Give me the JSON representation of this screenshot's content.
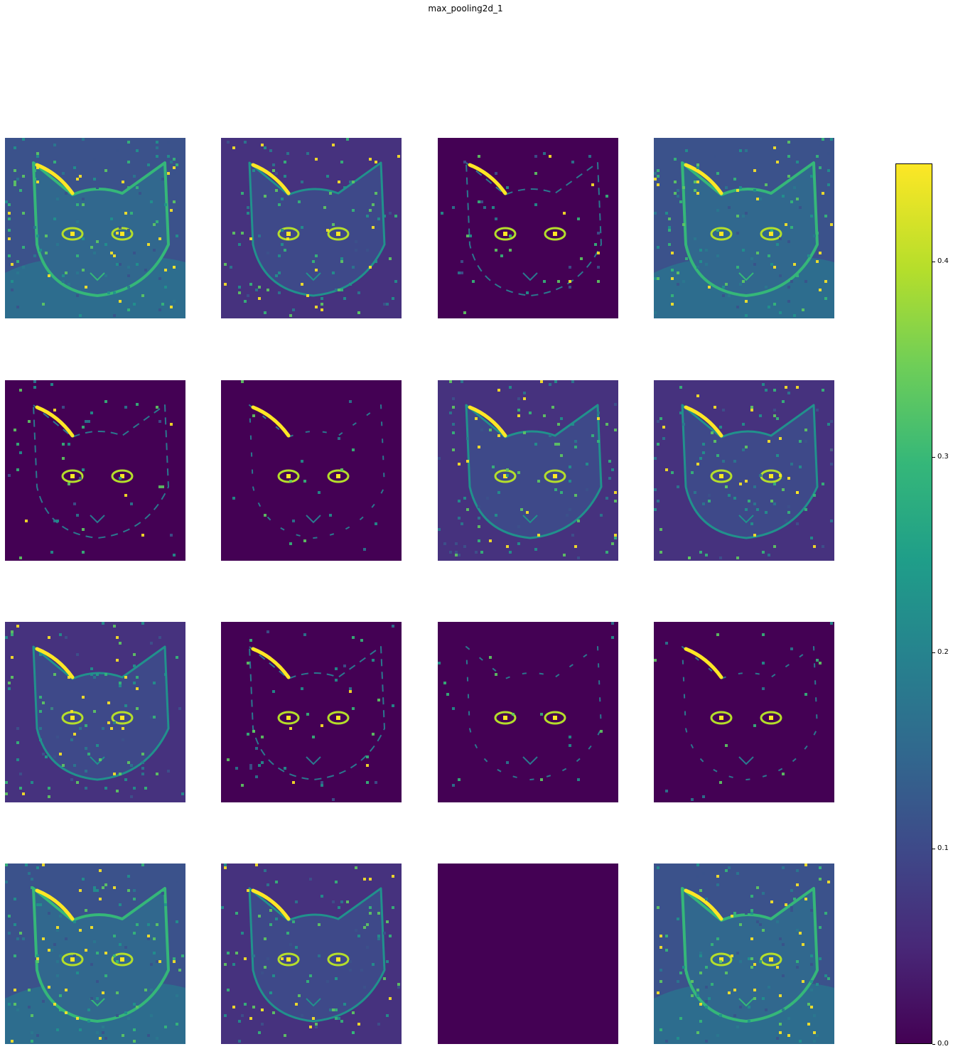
{
  "chart_data": {
    "type": "heatmap",
    "title": "max_pooling2d_1",
    "grid": {
      "rows": 4,
      "cols": 4
    },
    "axes": "off",
    "colormap": "viridis",
    "colorbar": {
      "range": [
        0.0,
        0.45
      ],
      "ticks": [
        {
          "value": 0.0,
          "label": "0.0"
        },
        {
          "value": 0.1,
          "label": "0.1"
        },
        {
          "value": 0.2,
          "label": "0.2"
        },
        {
          "value": 0.3,
          "label": "0.3"
        },
        {
          "value": 0.4,
          "label": "0.4"
        }
      ],
      "placement": "right"
    },
    "feature_maps": [
      {
        "index": 0,
        "activity": "high"
      },
      {
        "index": 1,
        "activity": "medium"
      },
      {
        "index": 2,
        "activity": "sparse"
      },
      {
        "index": 3,
        "activity": "high"
      },
      {
        "index": 4,
        "activity": "sparse"
      },
      {
        "index": 5,
        "activity": "very-sparse"
      },
      {
        "index": 6,
        "activity": "medium"
      },
      {
        "index": 7,
        "activity": "medium"
      },
      {
        "index": 8,
        "activity": "medium"
      },
      {
        "index": 9,
        "activity": "sparse"
      },
      {
        "index": 10,
        "activity": "very-sparse"
      },
      {
        "index": 11,
        "activity": "very-sparse"
      },
      {
        "index": 12,
        "activity": "high"
      },
      {
        "index": 13,
        "activity": "medium"
      },
      {
        "index": 14,
        "activity": "empty"
      },
      {
        "index": 15,
        "activity": "high"
      }
    ]
  }
}
